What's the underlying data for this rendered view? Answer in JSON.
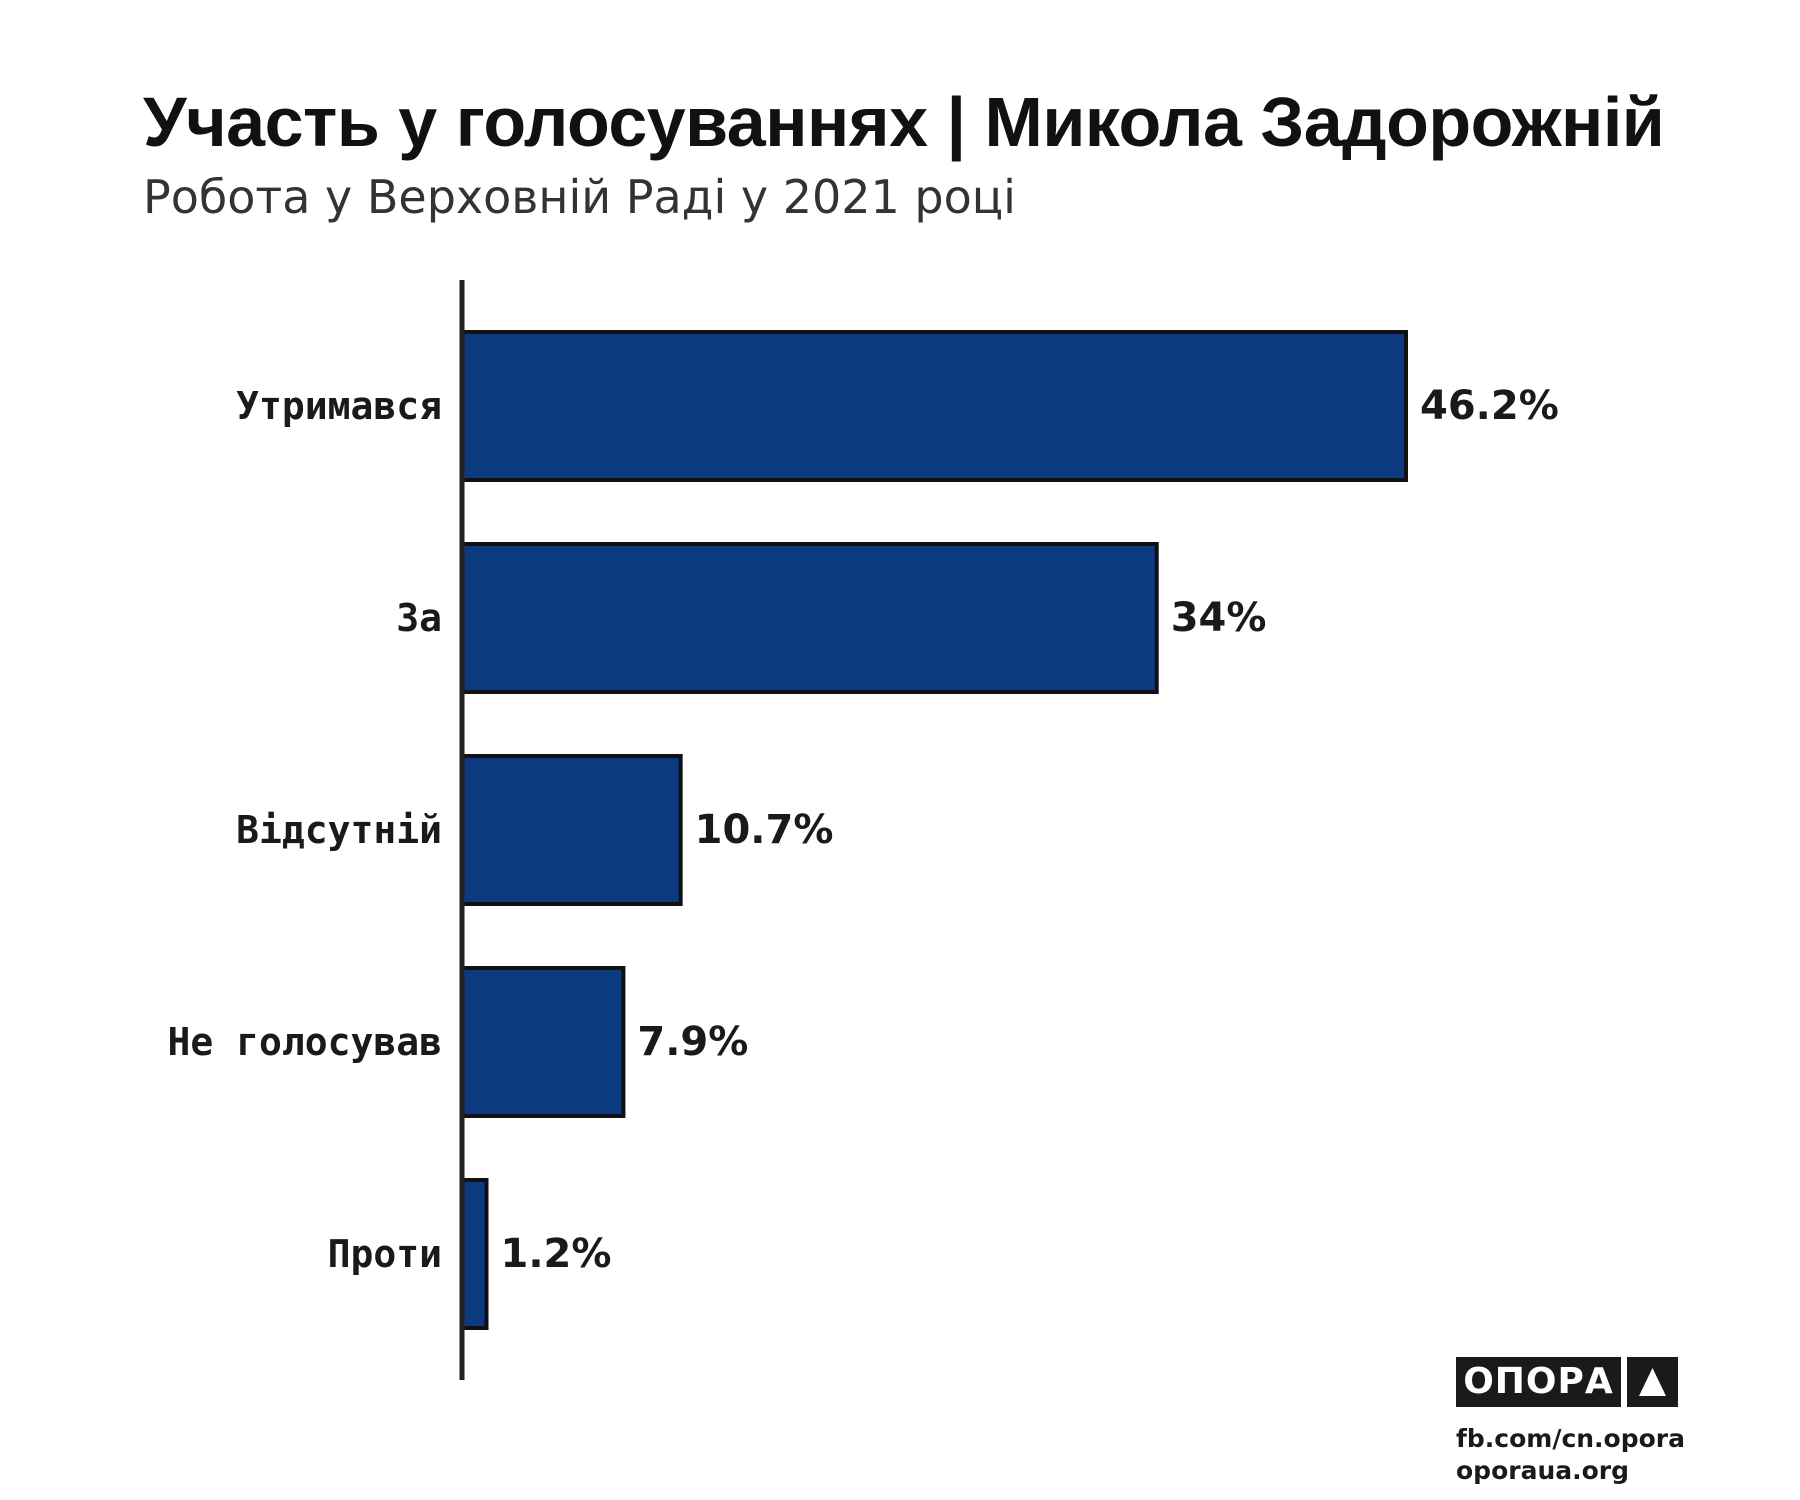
{
  "header": {
    "title": "Участь у голосуваннях | Микола Задорожній",
    "subtitle": "Робота у Верховній Раді у 2021 році"
  },
  "chart_data": {
    "type": "bar",
    "orientation": "horizontal",
    "title": "Участь у голосуваннях | Микола Задорожній",
    "subtitle": "Робота у Верховній Раді у 2021 році",
    "categories": [
      "Утримався",
      "За",
      "Відсутній",
      "Не голосував",
      "Проти"
    ],
    "values": [
      46.2,
      34,
      10.7,
      7.9,
      1.2
    ],
    "value_labels": [
      "46.2%",
      "34%",
      "10.7%",
      "7.9%",
      "1.2%"
    ],
    "xlim": [
      0,
      46.2
    ],
    "grid": false,
    "legend": "none",
    "bar_color": "#0c3a80",
    "bar_outline_color": "#111111",
    "axis_color": "#222222"
  },
  "branding": {
    "logo_text": "ОПОРА",
    "logo_icon": "triangle-up-icon",
    "link_facebook": "fb.com/cn.opora",
    "link_site": "oporaua.org"
  }
}
